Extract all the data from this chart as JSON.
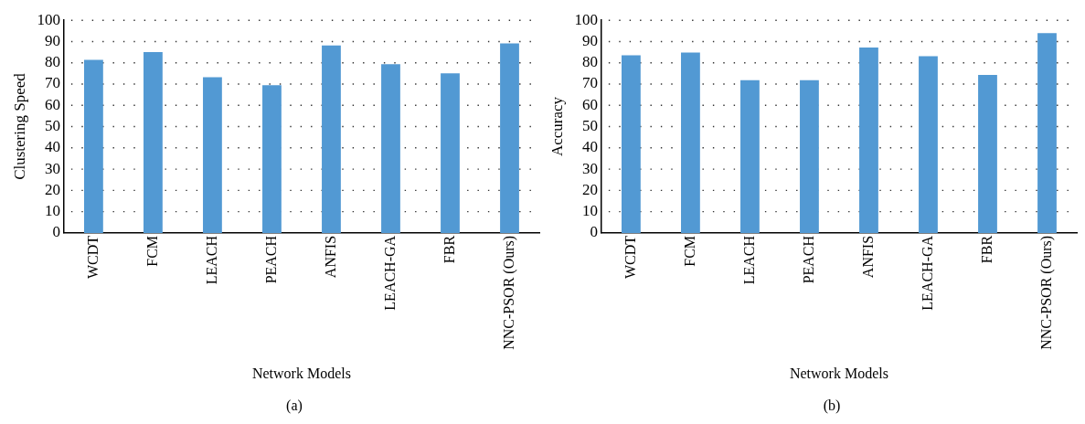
{
  "chart_data": [
    {
      "type": "bar",
      "xlabel": "Network Models",
      "ylabel": "Clustering Speed",
      "categories": [
        "WCDT",
        "FCM",
        "LEACH",
        "PEACH",
        "ANFIS",
        "LEACH-GA",
        "FBR",
        "NNC-PSOR (Ours)"
      ],
      "values": [
        81.4,
        85,
        73.2,
        69.5,
        88.2,
        79.4,
        75.1,
        89.1
      ],
      "color": "#5299d3",
      "ylim": [
        0,
        100
      ],
      "yticks": [
        0,
        10,
        20,
        30,
        40,
        50,
        60,
        70,
        80,
        90,
        100
      ],
      "grid": "y",
      "annotations": [
        "(a)"
      ]
    },
    {
      "type": "bar",
      "xlabel": "Network Models",
      "ylabel": "Accuracy",
      "categories": [
        "WCDT",
        "FCM",
        "LEACH",
        "PEACH",
        "ANFIS",
        "LEACH-GA",
        "FBR",
        "NNC-PSOR (Ours)"
      ],
      "values": [
        83.5,
        84.8,
        71.8,
        71.8,
        87.2,
        83.1,
        74.3,
        94
      ],
      "color": "#5299d3",
      "ylim": [
        0,
        100
      ],
      "yticks": [
        0,
        10,
        20,
        30,
        40,
        50,
        60,
        70,
        80,
        90,
        100
      ],
      "grid": "y",
      "annotations": [
        "(b)"
      ]
    }
  ]
}
